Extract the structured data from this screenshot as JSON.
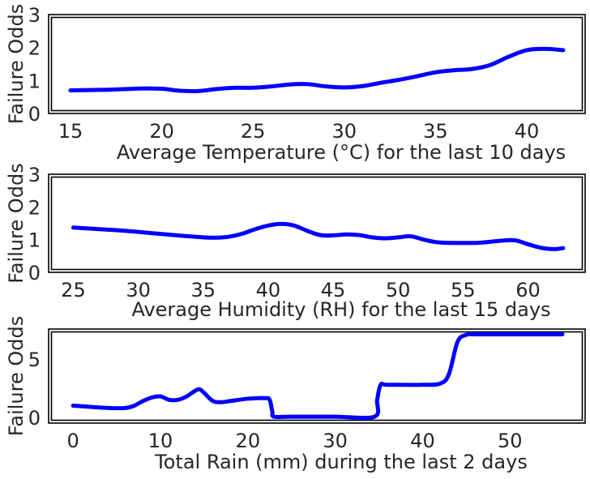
{
  "chart_data": [
    {
      "type": "line",
      "xlabel": "Average Temperature (°C) for the last 10 days",
      "ylabel": "Failure Odds",
      "xlim": [
        13.8,
        43.2
      ],
      "ylim": [
        0,
        3
      ],
      "xticks": [
        15,
        20,
        25,
        30,
        35,
        40
      ],
      "yticks": [
        0,
        1,
        2,
        3
      ],
      "grid": false,
      "color": "#0000ff",
      "series": [
        {
          "x": [
            15,
            16,
            17,
            18,
            19,
            20,
            21,
            22,
            23,
            24,
            25,
            26,
            27,
            28,
            29,
            30,
            31,
            32,
            33,
            34,
            35,
            36,
            37,
            38,
            39,
            40,
            41,
            42
          ],
          "y": [
            0.7,
            0.71,
            0.72,
            0.74,
            0.76,
            0.75,
            0.69,
            0.68,
            0.74,
            0.78,
            0.78,
            0.82,
            0.88,
            0.89,
            0.82,
            0.79,
            0.83,
            0.93,
            1.02,
            1.13,
            1.25,
            1.31,
            1.35,
            1.47,
            1.72,
            1.92,
            1.96,
            1.92
          ]
        }
      ]
    },
    {
      "type": "line",
      "xlabel": "Average Humidity (RH) for the last 15 days",
      "ylabel": "Failure Odds",
      "xlim": [
        23.1,
        64.4
      ],
      "ylim": [
        0,
        3
      ],
      "xticks": [
        25,
        30,
        35,
        40,
        45,
        50,
        55,
        60
      ],
      "yticks": [
        0,
        1,
        2,
        3
      ],
      "grid": false,
      "color": "#0000ff",
      "series": [
        {
          "x": [
            25,
            27,
            29,
            31,
            33,
            35,
            36,
            37,
            38,
            39,
            40,
            41,
            42,
            43,
            44,
            45,
            46,
            47,
            48,
            49,
            50,
            51,
            52,
            53,
            54,
            55,
            56,
            57,
            58,
            59,
            60,
            61,
            62,
            62.7
          ],
          "y": [
            1.37,
            1.32,
            1.27,
            1.2,
            1.13,
            1.07,
            1.06,
            1.09,
            1.18,
            1.32,
            1.43,
            1.48,
            1.43,
            1.27,
            1.14,
            1.13,
            1.16,
            1.14,
            1.07,
            1.04,
            1.07,
            1.1,
            1.0,
            0.92,
            0.9,
            0.9,
            0.9,
            0.93,
            0.97,
            0.98,
            0.86,
            0.75,
            0.71,
            0.74
          ]
        }
      ]
    },
    {
      "type": "line",
      "xlabel": "Total Rain (mm) during the last 2 days",
      "ylabel": "Failure Odds",
      "xlim": [
        -2.8,
        58.6
      ],
      "ylim": [
        -0.5,
        7.6
      ],
      "xticks": [
        0,
        10,
        20,
        30,
        40,
        50
      ],
      "yticks": [
        0,
        5
      ],
      "grid": false,
      "color": "#0000ff",
      "series": [
        {
          "x": [
            0,
            2,
            4,
            6,
            7,
            8,
            9,
            10,
            11,
            12,
            13,
            14,
            14.5,
            15,
            16,
            17,
            18,
            20,
            22,
            22.5,
            22.8,
            23,
            25,
            30,
            34.5,
            34.8,
            35.2,
            36,
            40,
            42,
            43,
            44,
            45,
            46,
            50,
            56
          ],
          "y": [
            1.0,
            0.9,
            0.8,
            0.8,
            1.0,
            1.4,
            1.7,
            1.8,
            1.5,
            1.5,
            1.8,
            2.3,
            2.4,
            2.1,
            1.4,
            1.3,
            1.4,
            1.6,
            1.65,
            1.5,
            0.5,
            0.05,
            0.05,
            0.05,
            0.05,
            1.5,
            2.8,
            2.8,
            2.8,
            2.9,
            3.7,
            6.5,
            7.1,
            7.15,
            7.15,
            7.15
          ]
        }
      ]
    }
  ]
}
